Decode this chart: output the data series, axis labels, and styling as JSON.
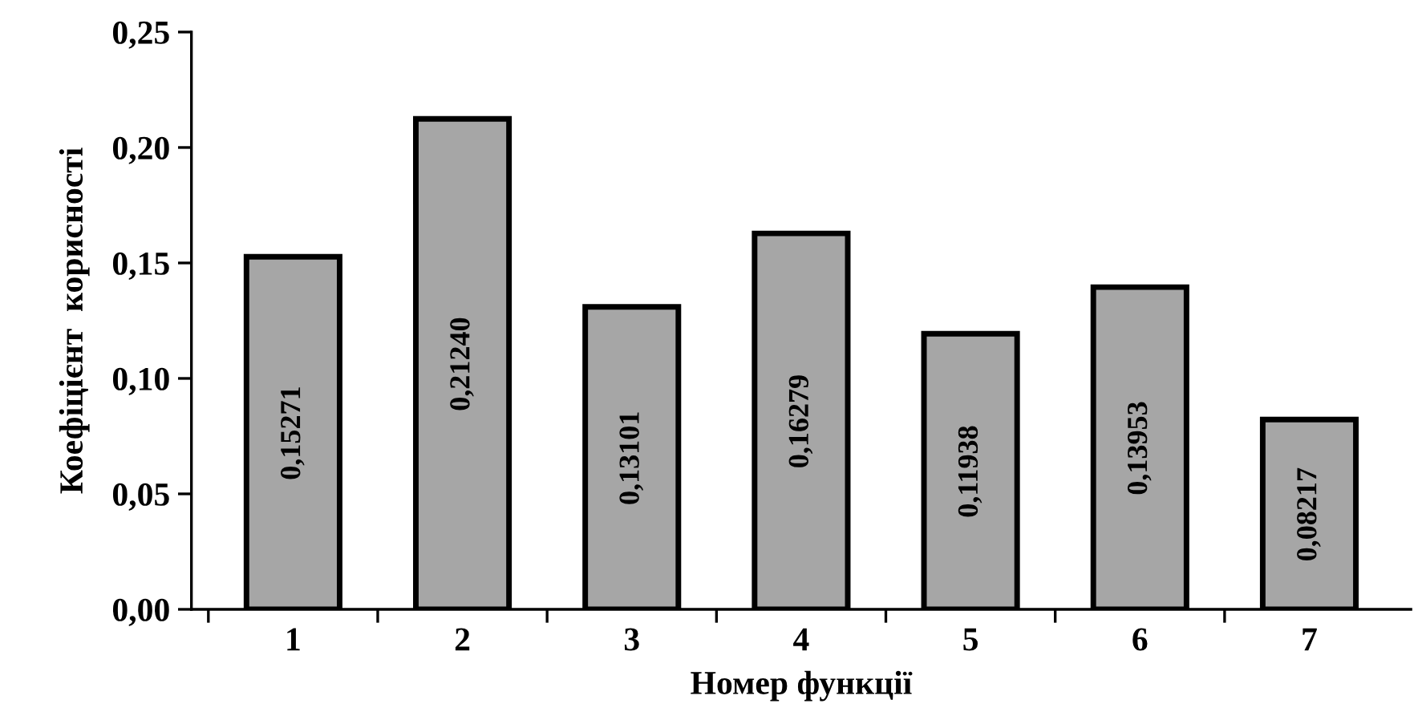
{
  "chart_data": {
    "type": "bar",
    "xlabel": "Номер функції",
    "ylabel": "Коефіцієнт  корисності",
    "categories": [
      "1",
      "2",
      "3",
      "4",
      "5",
      "6",
      "7"
    ],
    "values": [
      0.15271,
      0.2124,
      0.13101,
      0.16279,
      0.11938,
      0.13953,
      0.08217
    ],
    "value_labels": [
      "0,15271",
      "0,21240",
      "0,13101",
      "0,16279",
      "0,11938",
      "0,13953",
      "0,08217"
    ],
    "color": "#a6a6a6",
    "ylim": [
      0,
      0.25
    ],
    "yticks": [
      {
        "value": 0,
        "label": "0,00"
      },
      {
        "value": 0.05,
        "label": "0,05"
      },
      {
        "value": 0.1,
        "label": "0,10"
      },
      {
        "value": 0.15,
        "label": "0,15"
      },
      {
        "value": 0.2,
        "label": "0,20"
      },
      {
        "value": 0.25,
        "label": "0,25"
      }
    ],
    "grid": false
  }
}
